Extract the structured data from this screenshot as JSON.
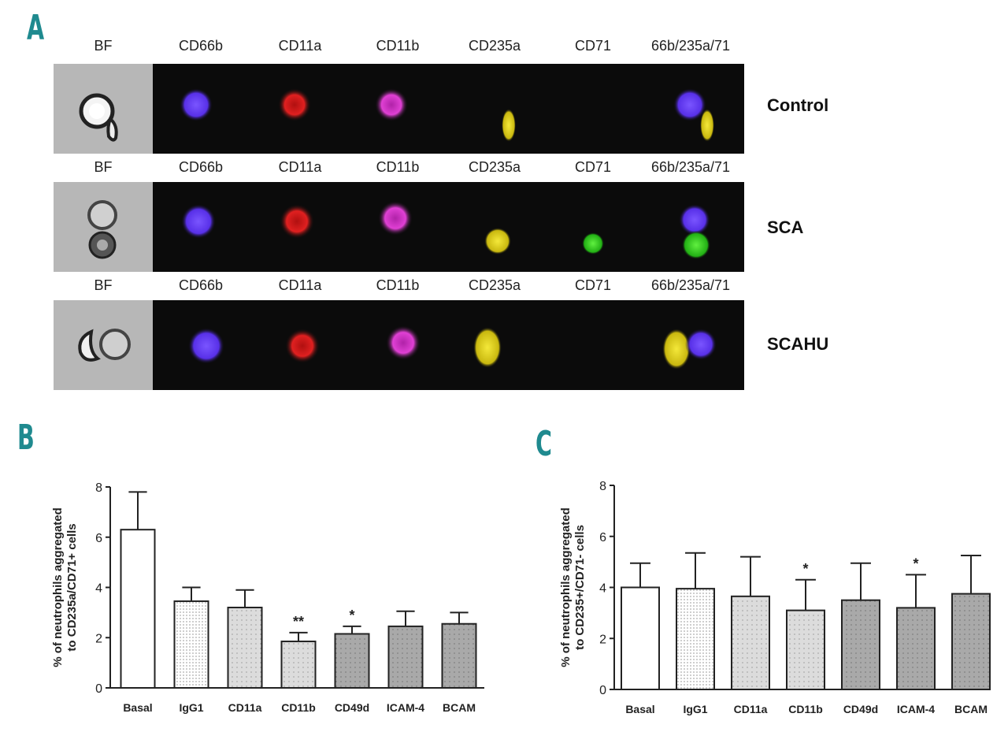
{
  "panel_a": {
    "letter": "A",
    "rows": [
      {
        "label": "Control",
        "columns": [
          "BF",
          "CD66b",
          "CD11a",
          "CD11b",
          "CD235a",
          "CD71",
          "66b/235a/71"
        ]
      },
      {
        "label": "SCA",
        "columns": [
          "BF",
          "CD66b",
          "CD11a",
          "CD11b",
          "CD235a",
          "CD71",
          "66b/235a/71"
        ]
      },
      {
        "label": "SCAHU",
        "columns": [
          "BF",
          "CD66b",
          "CD11a",
          "CD11b",
          "CD235a",
          "CD71",
          "66b/235a/71"
        ]
      }
    ],
    "colors": {
      "cd66b": "#6a3cff",
      "cd11a": "#e01818",
      "cd11b": "#e03ad0",
      "cd235a": "#e6d81a",
      "cd71": "#2fd41c",
      "bf_bg": "#b7b7b7",
      "strip_bg": "#0b0b0b"
    }
  },
  "chart_data": [
    {
      "panel_letter": "B",
      "type": "bar",
      "ylabel_line1": "% of neutrophils aggregated",
      "ylabel_line2": "to CD235a/CD71+ cells",
      "categories": [
        "Basal",
        "IgG1",
        "CD11a",
        "CD11b",
        "CD49d",
        "ICAM-4",
        "BCAM"
      ],
      "values": [
        6.3,
        3.45,
        3.2,
        1.85,
        2.15,
        2.45,
        2.55
      ],
      "errors": [
        1.5,
        0.55,
        0.7,
        0.35,
        0.3,
        0.6,
        0.45
      ],
      "significance": [
        "",
        "",
        "",
        "**",
        "*",
        "",
        ""
      ],
      "ylim": [
        0,
        8
      ],
      "yticks": [
        "0",
        "2",
        "4",
        "6",
        "8"
      ],
      "fills": [
        "open",
        "dense-dots",
        "light-gray-dots",
        "light-gray-dots",
        "gray-dots",
        "gray-dots",
        "gray-dots"
      ]
    },
    {
      "panel_letter": "C",
      "type": "bar",
      "ylabel_line1": "% of neutrophils aggregated",
      "ylabel_line2": "to CD235+/CD71- cells",
      "categories": [
        "Basal",
        "IgG1",
        "CD11a",
        "CD11b",
        "CD49d",
        "ICAM-4",
        "BCAM"
      ],
      "values": [
        4.0,
        3.95,
        3.65,
        3.1,
        3.5,
        3.2,
        3.75
      ],
      "errors": [
        0.95,
        1.4,
        1.55,
        1.2,
        1.45,
        1.3,
        1.5
      ],
      "significance": [
        "",
        "",
        "",
        "*",
        "",
        "*",
        ""
      ],
      "ylim": [
        0,
        8
      ],
      "yticks": [
        "0",
        "2",
        "4",
        "6",
        "8"
      ],
      "fills": [
        "open",
        "dense-dots",
        "light-gray-dots",
        "light-gray-dots",
        "gray-dots",
        "gray-dots",
        "gray-dots"
      ]
    }
  ]
}
